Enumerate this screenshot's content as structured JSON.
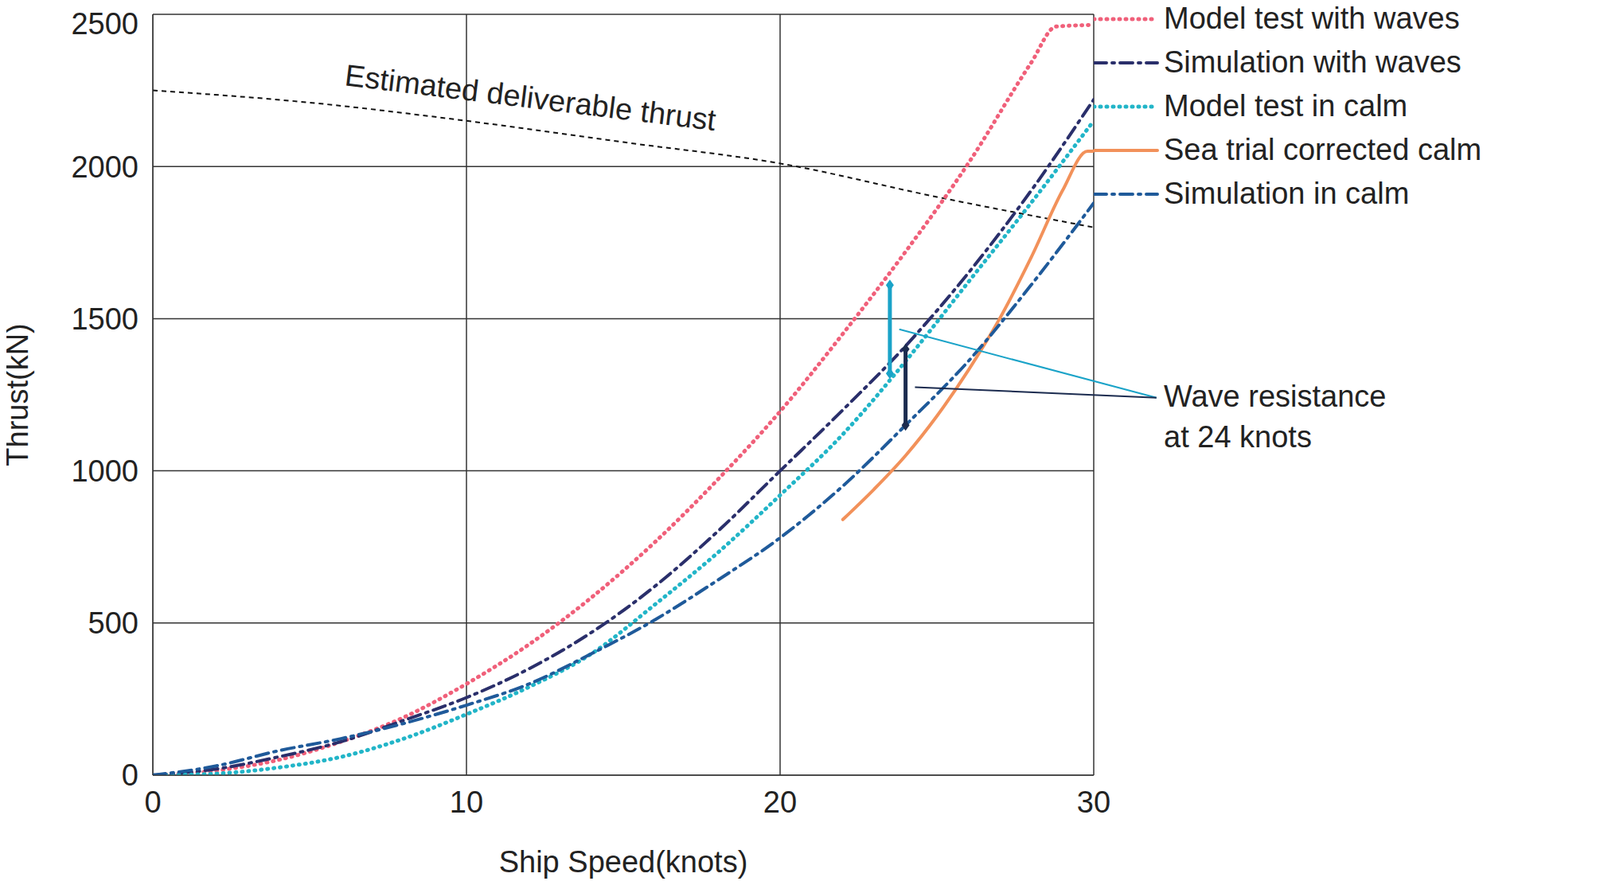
{
  "chart_data": {
    "type": "line",
    "x_label": "Ship Speed(knots)",
    "y_label": "Thrust(kN)",
    "xlim": [
      0,
      30
    ],
    "xticks": [
      0,
      10,
      20,
      30
    ],
    "ylim": [
      0,
      2500
    ],
    "yticks": [
      0,
      500,
      1000,
      1500,
      2000,
      2500
    ],
    "grid": true,
    "legend": "right",
    "series": [
      {
        "name": "Model test with waves",
        "color": "#f0607a",
        "line_style": "dotted",
        "x": [
          0,
          2,
          4,
          6,
          8,
          10,
          12,
          14,
          16,
          18,
          20,
          22,
          24,
          26,
          28,
          28.8,
          30
        ],
        "values": [
          0,
          15,
          50,
          110,
          190,
          300,
          430,
          585,
          765,
          970,
          1195,
          1450,
          1720,
          2010,
          2340,
          2460,
          2465
        ]
      },
      {
        "name": "Simulation with waves",
        "color": "#2a2f6b",
        "line_style": "dashdot",
        "x": [
          0,
          2,
          4,
          6,
          8,
          10,
          12,
          14,
          16,
          18,
          20,
          22,
          24,
          26,
          28,
          30
        ],
        "values": [
          0,
          20,
          60,
          110,
          180,
          255,
          350,
          470,
          620,
          800,
          1000,
          1200,
          1410,
          1650,
          1920,
          2220
        ]
      },
      {
        "name": "Model test in calm",
        "color": "#22b5c8",
        "line_style": "dotted",
        "x": [
          0,
          2,
          4,
          6,
          8,
          10,
          12,
          14,
          16,
          18,
          20,
          22,
          24,
          26,
          28,
          30
        ],
        "values": [
          0,
          5,
          25,
          60,
          120,
          200,
          290,
          400,
          560,
          730,
          920,
          1120,
          1360,
          1620,
          1880,
          2150
        ]
      },
      {
        "name": "Sea trial corrected calm",
        "color": "#f2915a",
        "line_style": "solid",
        "x": [
          22,
          23,
          24,
          25,
          26,
          27,
          28,
          29,
          29.8,
          30
        ],
        "values": [
          840,
          940,
          1050,
          1180,
          1330,
          1500,
          1700,
          1920,
          2050,
          2050
        ]
      },
      {
        "name": "Simulation in calm",
        "color": "#1f5a9a",
        "line_style": "dashdot",
        "x": [
          0,
          2,
          4,
          6,
          8,
          10,
          12,
          14,
          16,
          18,
          20,
          22,
          24,
          26,
          28,
          30
        ],
        "values": [
          0,
          30,
          80,
          120,
          170,
          230,
          300,
          400,
          510,
          640,
          780,
          950,
          1150,
          1360,
          1610,
          1880
        ]
      }
    ],
    "deliverable_thrust": {
      "label": "Estimated deliverable thrust",
      "color": "#111111",
      "line_style": "dashed",
      "x": [
        0,
        5,
        10,
        15,
        20,
        25,
        30
      ],
      "values": [
        2250,
        2210,
        2150,
        2080,
        2010,
        1900,
        1800
      ]
    },
    "annotations": [
      {
        "text": [
          "Wave resistance",
          "at 24 knots"
        ],
        "markers": [
          {
            "x": 23.5,
            "y_low": 1320,
            "y_high": 1610,
            "color": "#1aa3c8"
          },
          {
            "x": 24,
            "y_low": 1150,
            "y_high": 1400,
            "color": "#1b2b4f"
          }
        ]
      }
    ]
  }
}
